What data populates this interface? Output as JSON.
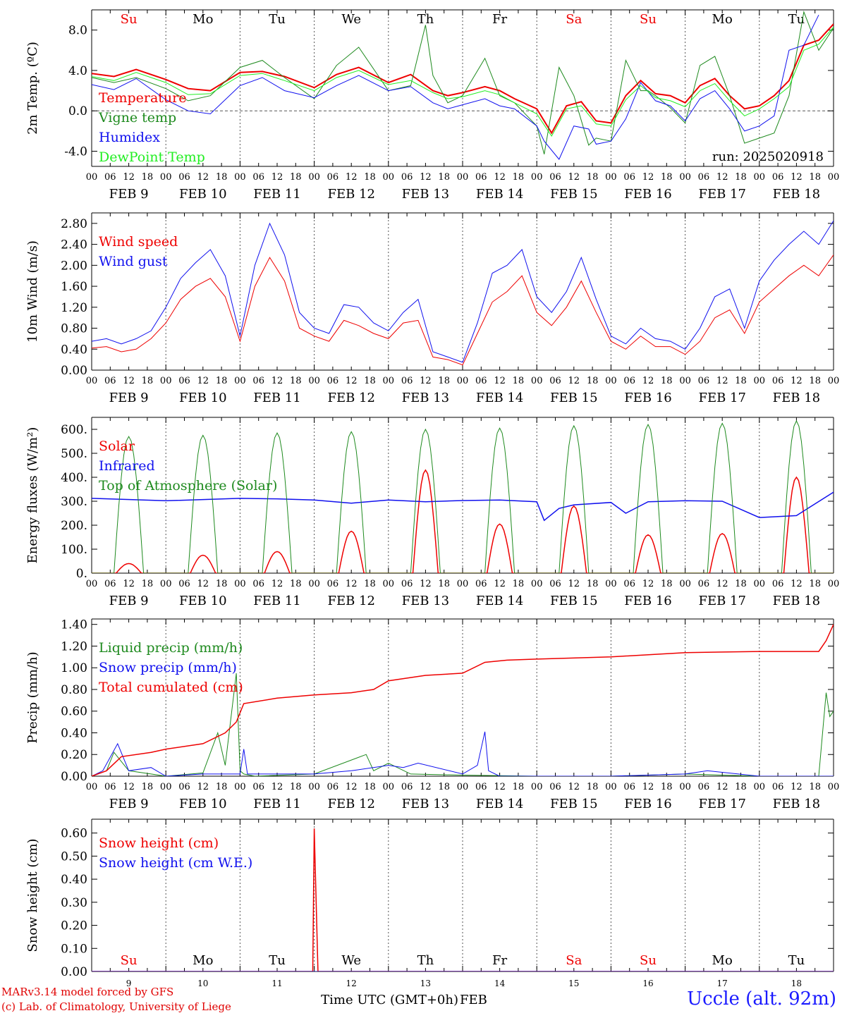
{
  "footer": {
    "model": "MARv3.14 model forced by GFS",
    "lab": "(c) Lab. of Climatology, University of Liege",
    "station": "Uccle (alt. 92m)"
  },
  "run_label": "run: 2025020918",
  "x_axis": {
    "title": "Time UTC (GMT+0h)",
    "unit_label": "FEB",
    "hour_ticks": [
      "00",
      "06",
      "12",
      "18"
    ],
    "date_labels": [
      "FEB  9",
      "FEB 10",
      "FEB 11",
      "FEB 12",
      "FEB 13",
      "FEB 14",
      "FEB 15",
      "FEB 16",
      "FEB 17",
      "FEB 18"
    ],
    "day_numbers": [
      "9",
      "10",
      "11",
      "12",
      "13",
      "14",
      "15",
      "16",
      "17",
      "18"
    ],
    "weekdays": [
      "Su",
      "Mo",
      "Tu",
      "We",
      "Th",
      "Fr",
      "Sa",
      "Su",
      "Mo",
      "Tu"
    ],
    "weekend_flags": [
      true,
      false,
      false,
      false,
      false,
      false,
      true,
      true,
      false,
      false
    ],
    "end_label": "00"
  },
  "colors": {
    "red": "#ee0000",
    "green": "#1e8a1e",
    "blue": "#1010ee",
    "lightgreen": "#22ee22",
    "axis": "#000000",
    "grid": "#555555"
  },
  "chart_data": [
    {
      "type": "line",
      "ylabel": "2m Temp. (ºC)",
      "ylim": [
        -5.5,
        10
      ],
      "ticks": [
        "8.0",
        "4.0",
        "0.0",
        "-4.0"
      ],
      "tick_values": [
        8,
        4,
        0,
        -4
      ],
      "zero_line": true,
      "show_weekdays_top": true,
      "show_run": true,
      "series": [
        {
          "name": "Temperature",
          "color": "red",
          "width": 2,
          "t": [
            0,
            0.3,
            0.6,
            1,
            1.3,
            1.6,
            2,
            2.3,
            2.6,
            3,
            3.3,
            3.6,
            4,
            4.3,
            4.6,
            4.8,
            5,
            5.3,
            5.5,
            5.7,
            6,
            6.2,
            6.4,
            6.6,
            6.8,
            7,
            7.2,
            7.4,
            7.6,
            7.8,
            8,
            8.2,
            8.4,
            8.6,
            8.8,
            9,
            9.2,
            9.4,
            9.6,
            9.8,
            10
          ],
          "v": [
            3.7,
            3.4,
            4.1,
            3.1,
            2.2,
            2.0,
            3.8,
            3.9,
            3.4,
            2.3,
            3.6,
            4.3,
            2.8,
            3.6,
            2.0,
            1.5,
            1.8,
            2.4,
            2.0,
            1.2,
            0.2,
            -2.2,
            0.5,
            0.9,
            -1.0,
            -1.2,
            1.5,
            3.0,
            1.7,
            1.5,
            0.8,
            2.5,
            3.2,
            1.5,
            0.2,
            0.5,
            1.5,
            3.0,
            6.5,
            7.0,
            8.6
          ]
        },
        {
          "name": "Vigne temp",
          "color": "green",
          "width": 1,
          "t": [
            0,
            0.3,
            0.6,
            1,
            1.3,
            1.6,
            2,
            2.3,
            2.6,
            3,
            3.3,
            3.6,
            4,
            4.3,
            4.5,
            4.6,
            4.8,
            5,
            5.3,
            5.5,
            5.7,
            6,
            6.1,
            6.3,
            6.5,
            6.7,
            6.8,
            7,
            7.2,
            7.4,
            7.5,
            7.6,
            7.8,
            8,
            8.2,
            8.4,
            8.6,
            8.8,
            9,
            9.2,
            9.4,
            9.6,
            9.8,
            10
          ],
          "v": [
            3.3,
            2.8,
            3.3,
            2.2,
            1.0,
            1.5,
            4.3,
            5.0,
            3.3,
            1.2,
            4.5,
            6.3,
            2.0,
            2.5,
            8.5,
            3.5,
            0.8,
            1.5,
            5.2,
            1.5,
            0.8,
            -1.5,
            -4.3,
            4.3,
            1.5,
            -3.4,
            -2.7,
            -3.0,
            5.0,
            2.0,
            2.0,
            1.5,
            0.3,
            -1.2,
            4.5,
            5.4,
            1.5,
            -3.2,
            -2.7,
            -2.2,
            1.5,
            9.8,
            6.0,
            8.2
          ]
        },
        {
          "name": "Humidex",
          "color": "blue",
          "width": 1,
          "t": [
            0,
            0.3,
            0.6,
            1,
            1.3,
            1.6,
            2,
            2.3,
            2.6,
            3,
            3.3,
            3.6,
            4,
            4.3,
            4.6,
            4.8,
            5,
            5.3,
            5.5,
            5.7,
            6,
            6.1,
            6.3,
            6.5,
            6.7,
            6.8,
            7,
            7.2,
            7.4,
            7.6,
            7.8,
            8,
            8.2,
            8.4,
            8.6,
            8.8,
            9,
            9.2,
            9.4,
            9.6,
            9.8,
            10
          ],
          "v": [
            2.6,
            2.1,
            3.2,
            1.1,
            0,
            -0.3,
            2.5,
            3.3,
            2.0,
            1.3,
            2.5,
            3.5,
            2.0,
            2.4,
            0.8,
            0.2,
            0.6,
            1.2,
            0.5,
            0.2,
            -1.5,
            -3.0,
            -4.8,
            -1.5,
            -1.8,
            -3.3,
            -3.0,
            -0.8,
            2.8,
            1.0,
            0.5,
            -1.0,
            1.2,
            2.0,
            0.2,
            -2.0,
            -1.5,
            -0.5,
            6.0,
            6.5,
            9.5
          ]
        },
        {
          "name": "DewPoint Temp",
          "color": "lightgreen",
          "width": 1,
          "t": [
            0,
            0.3,
            0.6,
            1,
            1.3,
            1.6,
            2,
            2.3,
            2.6,
            3,
            3.3,
            3.6,
            4,
            4.3,
            4.6,
            4.8,
            5,
            5.3,
            5.5,
            5.7,
            6,
            6.2,
            6.4,
            6.6,
            6.8,
            7,
            7.2,
            7.4,
            7.6,
            7.8,
            8,
            8.2,
            8.4,
            8.6,
            8.8,
            9,
            9.2,
            9.4,
            9.6,
            9.8,
            10
          ],
          "v": [
            3.4,
            3.0,
            3.8,
            2.8,
            1.6,
            1.7,
            3.5,
            3.7,
            3.0,
            2.0,
            3.3,
            4.0,
            2.6,
            3.0,
            1.8,
            1.2,
            1.4,
            2.0,
            1.6,
            0.8,
            -0.3,
            -2.5,
            0.2,
            0.5,
            -1.3,
            -1.5,
            1.1,
            2.5,
            1.3,
            1.0,
            0.4,
            2.0,
            2.7,
            1.0,
            -0.5,
            0.2,
            1.2,
            2.4,
            6.0,
            6.6,
            8.3
          ]
        }
      ]
    },
    {
      "type": "line",
      "ylabel": "10m Wind (m/s)",
      "ylim": [
        0,
        3.0
      ],
      "ticks": [
        "2.80",
        "2.40",
        "2.00",
        "1.60",
        "1.20",
        "0.80",
        "0.40",
        "0.00"
      ],
      "tick_values": [
        2.8,
        2.4,
        2.0,
        1.6,
        1.2,
        0.8,
        0.4,
        0.0
      ],
      "series": [
        {
          "name": "Wind speed",
          "color": "red",
          "width": 1,
          "t": [
            0,
            0.2,
            0.4,
            0.6,
            0.8,
            1.0,
            1.2,
            1.4,
            1.6,
            1.8,
            2.0,
            2.2,
            2.4,
            2.6,
            2.8,
            3.0,
            3.2,
            3.4,
            3.6,
            3.8,
            4.0,
            4.2,
            4.4,
            4.6,
            4.8,
            5.0,
            5.2,
            5.4,
            5.6,
            5.8,
            6.0,
            6.2,
            6.4,
            6.6,
            6.8,
            7.0,
            7.2,
            7.4,
            7.6,
            7.8,
            8.0,
            8.2,
            8.4,
            8.6,
            8.8,
            9.0,
            9.2,
            9.4,
            9.6,
            9.8,
            10
          ],
          "v": [
            0.42,
            0.45,
            0.35,
            0.4,
            0.6,
            0.9,
            1.35,
            1.6,
            1.75,
            1.4,
            0.55,
            1.6,
            2.15,
            1.7,
            0.8,
            0.65,
            0.55,
            0.95,
            0.85,
            0.7,
            0.6,
            0.9,
            0.95,
            0.25,
            0.2,
            0.1,
            0.7,
            1.3,
            1.5,
            1.8,
            1.1,
            0.85,
            1.2,
            1.7,
            1.1,
            0.55,
            0.4,
            0.65,
            0.45,
            0.45,
            0.3,
            0.55,
            1.0,
            1.15,
            0.7,
            1.3,
            1.55,
            1.8,
            2.0,
            1.8,
            2.2
          ]
        },
        {
          "name": "Wind gust",
          "color": "blue",
          "width": 1,
          "t": [
            0,
            0.2,
            0.4,
            0.6,
            0.8,
            1.0,
            1.2,
            1.4,
            1.6,
            1.8,
            2.0,
            2.2,
            2.4,
            2.6,
            2.8,
            3.0,
            3.2,
            3.4,
            3.6,
            3.8,
            4.0,
            4.2,
            4.4,
            4.6,
            4.8,
            5.0,
            5.2,
            5.4,
            5.6,
            5.8,
            6.0,
            6.2,
            6.4,
            6.6,
            6.8,
            7.0,
            7.2,
            7.4,
            7.6,
            7.8,
            8.0,
            8.2,
            8.4,
            8.6,
            8.8,
            9.0,
            9.2,
            9.4,
            9.6,
            9.8,
            10
          ],
          "v": [
            0.55,
            0.6,
            0.5,
            0.6,
            0.75,
            1.2,
            1.75,
            2.05,
            2.3,
            1.8,
            0.65,
            2.0,
            2.8,
            2.2,
            1.1,
            0.8,
            0.7,
            1.25,
            1.2,
            0.9,
            0.75,
            1.1,
            1.35,
            0.35,
            0.25,
            0.15,
            0.9,
            1.85,
            2.0,
            2.3,
            1.4,
            1.1,
            1.5,
            2.15,
            1.35,
            0.65,
            0.5,
            0.8,
            0.6,
            0.55,
            0.4,
            0.8,
            1.4,
            1.55,
            0.8,
            1.7,
            2.1,
            2.4,
            2.65,
            2.4,
            2.85
          ]
        }
      ]
    },
    {
      "type": "line",
      "ylabel": "Energy fluxes (W/m²)",
      "ylim": [
        0,
        650
      ],
      "ticks": [
        "600.",
        "500.",
        "400.",
        "300.",
        "200.",
        "100.",
        "0."
      ],
      "tick_values": [
        600,
        500,
        400,
        300,
        200,
        100,
        0
      ],
      "diurnal": true,
      "series": [
        {
          "name": "Solar",
          "color": "red",
          "width": 1.5,
          "peaks": [
            40,
            75,
            90,
            175,
            430,
            205,
            280,
            160,
            165,
            400
          ]
        },
        {
          "name": "Infrared",
          "color": "blue",
          "width": 1.5,
          "t": [
            0,
            1,
            2,
            2.5,
            3,
            3.5,
            4,
            4.5,
            5,
            5.5,
            6,
            6.1,
            6.3,
            6.5,
            7,
            7.2,
            7.5,
            8,
            8.5,
            9,
            9.5,
            10
          ],
          "v": [
            312,
            302,
            312,
            310,
            305,
            292,
            305,
            298,
            303,
            305,
            298,
            220,
            270,
            285,
            295,
            250,
            298,
            302,
            300,
            232,
            240,
            338
          ]
        },
        {
          "name": "Top of Atmosphere (Solar)",
          "color": "green",
          "width": 1,
          "peaks": [
            570,
            575,
            585,
            590,
            600,
            605,
            615,
            620,
            625,
            635
          ]
        }
      ]
    },
    {
      "type": "line",
      "ylabel": "Precip (mm/h)",
      "ylim": [
        0,
        1.45
      ],
      "ticks": [
        "1.40",
        "1.20",
        "1.00",
        "0.80",
        "0.60",
        "0.40",
        "0.20",
        "0.00"
      ],
      "tick_values": [
        1.4,
        1.2,
        1.0,
        0.8,
        0.6,
        0.4,
        0.2,
        0.0
      ],
      "series": [
        {
          "name": "Liquid precip (mm/h)",
          "color": "green",
          "width": 1,
          "t": [
            0,
            0.2,
            0.3,
            0.5,
            0.8,
            1.0,
            1.5,
            1.7,
            1.8,
            1.95,
            2.0,
            2.05,
            2.2,
            3.0,
            3.7,
            3.8,
            4.0,
            4.3,
            5.0,
            6.0,
            7.0,
            8.0,
            9.0,
            9.8,
            9.9,
            9.95,
            10
          ],
          "v": [
            0,
            0.05,
            0.22,
            0.05,
            0.02,
            0,
            0.03,
            0.4,
            0.1,
            0.95,
            0.05,
            0.02,
            0,
            0.02,
            0.2,
            0.05,
            0.12,
            0.02,
            0.01,
            0,
            0,
            0.02,
            0,
            0,
            0.77,
            0.55,
            0.6
          ]
        },
        {
          "name": "Snow precip (mm/h)",
          "color": "blue",
          "width": 1,
          "t": [
            0,
            0.15,
            0.35,
            0.5,
            0.8,
            1.0,
            1.5,
            2.0,
            2.05,
            2.1,
            3.0,
            3.5,
            4.0,
            4.2,
            4.4,
            5.0,
            5.2,
            5.3,
            5.35,
            5.5,
            6.0,
            7.0,
            8.0,
            8.3,
            9.0,
            10
          ],
          "v": [
            0,
            0.05,
            0.3,
            0.05,
            0.08,
            0,
            0.02,
            0.02,
            0.25,
            0.02,
            0.02,
            0.05,
            0.1,
            0.08,
            0.12,
            0.02,
            0.1,
            0.41,
            0.05,
            0,
            0,
            0,
            0.02,
            0.05,
            0,
            0
          ]
        },
        {
          "name": "Total cumulated (cm)",
          "color": "red",
          "width": 1.5,
          "t": [
            0,
            0.2,
            0.4,
            0.8,
            1.0,
            1.5,
            1.8,
            1.95,
            2.05,
            2.5,
            3.0,
            3.5,
            3.8,
            4.0,
            4.5,
            5.0,
            5.3,
            5.6,
            6.0,
            7.0,
            8.0,
            9.0,
            9.8,
            9.9,
            10
          ],
          "v": [
            0,
            0.05,
            0.18,
            0.22,
            0.25,
            0.3,
            0.4,
            0.5,
            0.67,
            0.72,
            0.75,
            0.77,
            0.8,
            0.88,
            0.93,
            0.95,
            1.05,
            1.07,
            1.08,
            1.1,
            1.14,
            1.15,
            1.15,
            1.25,
            1.4
          ]
        }
      ]
    },
    {
      "type": "line",
      "ylabel": "Snow height (cm)",
      "ylim": [
        0,
        0.66
      ],
      "ticks": [
        "0.60",
        "0.50",
        "0.40",
        "0.30",
        "0.20",
        "0.10",
        "0.00"
      ],
      "tick_values": [
        0.6,
        0.5,
        0.4,
        0.3,
        0.2,
        0.1,
        0.0
      ],
      "bottom_panel": true,
      "series": [
        {
          "name": "Snow height (cm)",
          "color": "red",
          "width": 1.5,
          "t": [
            0,
            2.98,
            3.0,
            3.05,
            10
          ],
          "v": [
            0,
            0,
            0.62,
            0,
            0
          ]
        },
        {
          "name": "Snow height (cm W.E.)",
          "color": "blue",
          "width": 1,
          "t": [
            0,
            10
          ],
          "v": [
            0,
            0
          ]
        }
      ]
    }
  ]
}
